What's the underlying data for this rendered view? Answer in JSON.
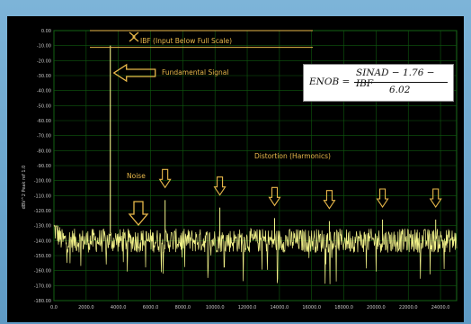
{
  "chart_data": {
    "type": "line",
    "ylabel": "dBV^2 Peak ref 1.0",
    "xlim": [
      0,
      25000
    ],
    "ylim": [
      -180,
      0
    ],
    "x_ticks": [
      "0.0",
      "2000.0",
      "4000.0",
      "6000.0",
      "8000.0",
      "10000.0",
      "12000.0",
      "14000.0",
      "16000.0",
      "18000.0",
      "20000.0",
      "22000.0",
      "24000.0"
    ],
    "y_ticks": [
      "0.00",
      "-10.00",
      "-20.00",
      "-30.00",
      "-40.00",
      "-50.00",
      "-60.00",
      "-70.00",
      "-80.00",
      "-90.00",
      "-100.00",
      "-110.00",
      "-120.00",
      "-130.00",
      "-140.00",
      "-150.00",
      "-160.00",
      "-170.00",
      "-180.00"
    ],
    "grid": true,
    "noise_floor_db": -140,
    "fundamental": {
      "x": 3500,
      "y": -10
    },
    "harmonics": [
      {
        "x": 6900,
        "y": -113
      },
      {
        "x": 10300,
        "y": -118
      },
      {
        "x": 13700,
        "y": -125
      },
      {
        "x": 17100,
        "y": -127
      },
      {
        "x": 20400,
        "y": -126
      },
      {
        "x": 23700,
        "y": -126
      }
    ],
    "series_color": "#f0f088",
    "annotation_color": "#e8b84a",
    "annotations": {
      "ibf": "IBF (Input Below Full Scale)",
      "fundamental": "Fundamental Signal",
      "noise": "Noise",
      "distortion": "Distortion (Harmonics)"
    }
  },
  "formula": {
    "lhs": "ENOB =",
    "numerator": "SINAD − 1.76 − IBF",
    "denominator": "6.02"
  }
}
